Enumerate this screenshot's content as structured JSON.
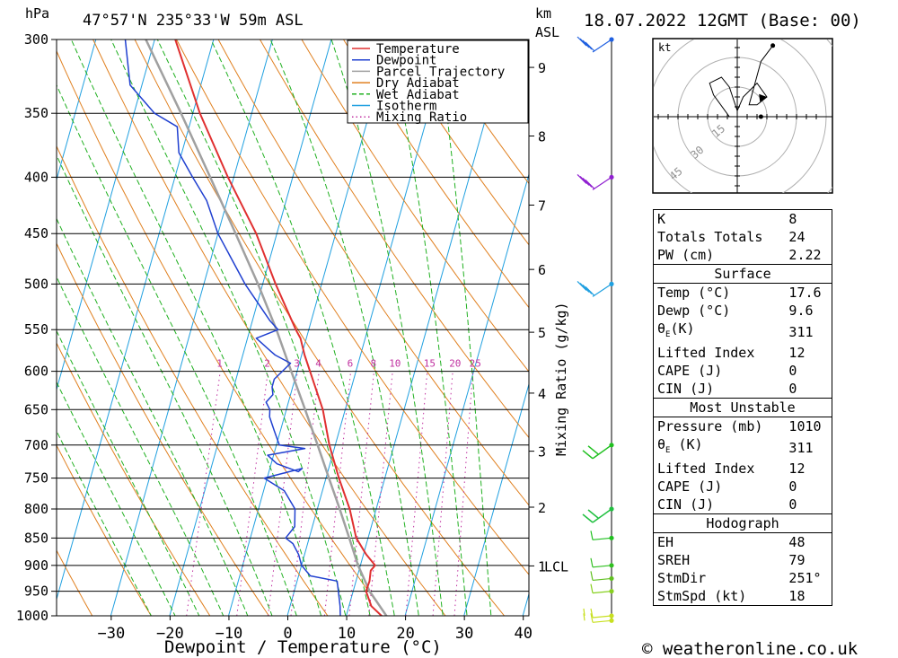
{
  "header": {
    "unit_hpa": "hPa",
    "location": "47°57'N  235°33'W  59m  ASL",
    "unit_km": "km",
    "unit_asl": "ASL",
    "datetime": "18.07.2022  12GMT  (Base: 00)"
  },
  "footer": {
    "credit": "© weatheronline.co.uk"
  },
  "hodograph": {
    "unit": "kt",
    "rings": [
      "15",
      "30",
      "45"
    ]
  },
  "legend": [
    {
      "label": "Temperature",
      "color": "#e03030",
      "style": "solid"
    },
    {
      "label": "Dewpoint",
      "color": "#2040d0",
      "style": "solid"
    },
    {
      "label": "Parcel Trajectory",
      "color": "#a0a0a0",
      "style": "solid"
    },
    {
      "label": "Dry Adiabat",
      "color": "#e08020",
      "style": "solid"
    },
    {
      "label": "Wet Adiabat",
      "color": "#20b020",
      "style": "dashed"
    },
    {
      "label": "Isotherm",
      "color": "#20a0e0",
      "style": "solid"
    },
    {
      "label": "Mixing Ratio",
      "color": "#c030a0",
      "style": "dotted"
    }
  ],
  "indices": [
    {
      "k": "K",
      "v": "8"
    },
    {
      "k": "Totals Totals",
      "v": "24"
    },
    {
      "k": "PW (cm)",
      "v": "2.22"
    }
  ],
  "surface": {
    "title": "Surface",
    "rows": [
      {
        "k": "Temp (°C)",
        "v": "17.6"
      },
      {
        "k": "Dewp (°C)",
        "v": "9.6"
      },
      {
        "k": "θE(K)",
        "v": "311"
      },
      {
        "k": "Lifted Index",
        "v": "12"
      },
      {
        "k": "CAPE (J)",
        "v": "0"
      },
      {
        "k": "CIN (J)",
        "v": "0"
      }
    ]
  },
  "most_unstable": {
    "title": "Most Unstable",
    "rows": [
      {
        "k": "Pressure (mb)",
        "v": "1010"
      },
      {
        "k": "θE (K)",
        "v": "311"
      },
      {
        "k": "Lifted Index",
        "v": "12"
      },
      {
        "k": "CAPE (J)",
        "v": "0"
      },
      {
        "k": "CIN (J)",
        "v": "0"
      }
    ]
  },
  "hodograph_table": {
    "title": "Hodograph",
    "rows": [
      {
        "k": "EH",
        "v": "48"
      },
      {
        "k": "SREH",
        "v": "79"
      },
      {
        "k": "StmDir",
        "v": "251°"
      },
      {
        "k": "StmSpd (kt)",
        "v": "18"
      }
    ]
  },
  "chart_data": {
    "type": "line",
    "subtype": "skew-T log-p",
    "xlabel": "Dewpoint / Temperature (°C)",
    "ylabel": "hPa",
    "right_axis_label": "Mixing Ratio (g/kg)",
    "x_ticks": [
      -30,
      -20,
      -10,
      0,
      10,
      20,
      30,
      40
    ],
    "pressure_levels": [
      300,
      350,
      400,
      450,
      500,
      550,
      600,
      650,
      700,
      750,
      800,
      850,
      900,
      950,
      1000
    ],
    "height_ticks_km": [
      {
        "label": "9",
        "p": 318
      },
      {
        "label": "8",
        "p": 367
      },
      {
        "label": "7",
        "p": 424
      },
      {
        "label": "6",
        "p": 485
      },
      {
        "label": "5",
        "p": 553
      },
      {
        "label": "4",
        "p": 628
      },
      {
        "label": "3",
        "p": 709
      },
      {
        "label": "2",
        "p": 797
      },
      {
        "label": "1",
        "p": 901
      }
    ],
    "lcl": {
      "label": "LCL",
      "p": 901
    },
    "mixing_ratio_labels": [
      "1",
      "2",
      "3",
      "4",
      "6",
      "8",
      "10",
      "15",
      "20",
      "25"
    ],
    "grid": true,
    "legend_position": "top-right",
    "series": [
      {
        "name": "Temperature",
        "points": [
          [
            1010,
            17.6
          ],
          [
            1000,
            16.0
          ],
          [
            980,
            13.8
          ],
          [
            950,
            12.2
          ],
          [
            930,
            12.3
          ],
          [
            910,
            12.0
          ],
          [
            900,
            12.5
          ],
          [
            880,
            10.5
          ],
          [
            850,
            8.0
          ],
          [
            800,
            5.5
          ],
          [
            750,
            2.2
          ],
          [
            700,
            -1.0
          ],
          [
            650,
            -3.8
          ],
          [
            600,
            -7.8
          ],
          [
            580,
            -9.5
          ],
          [
            560,
            -11.0
          ],
          [
            550,
            -12.2
          ],
          [
            500,
            -17.8
          ],
          [
            450,
            -23.5
          ],
          [
            400,
            -31.0
          ],
          [
            350,
            -38.8
          ],
          [
            300,
            -46.5
          ]
        ]
      },
      {
        "name": "Dewpoint",
        "points": [
          [
            1010,
            9.6
          ],
          [
            1000,
            9.0
          ],
          [
            980,
            8.5
          ],
          [
            950,
            7.5
          ],
          [
            930,
            6.8
          ],
          [
            920,
            2.0
          ],
          [
            900,
            0.0
          ],
          [
            880,
            -1.0
          ],
          [
            860,
            -2.5
          ],
          [
            850,
            -4.0
          ],
          [
            830,
            -3.0
          ],
          [
            800,
            -3.8
          ],
          [
            770,
            -6.5
          ],
          [
            750,
            -10.5
          ],
          [
            740,
            -6.5
          ],
          [
            735,
            -4.5
          ],
          [
            740,
            -5.0
          ],
          [
            728,
            -9.0
          ],
          [
            715,
            -11.0
          ],
          [
            705,
            -5.0
          ],
          [
            700,
            -9.5
          ],
          [
            680,
            -11.0
          ],
          [
            660,
            -12.5
          ],
          [
            650,
            -12.8
          ],
          [
            640,
            -13.8
          ],
          [
            630,
            -13.0
          ],
          [
            620,
            -13.5
          ],
          [
            610,
            -13.5
          ],
          [
            600,
            -12.5
          ],
          [
            590,
            -11.5
          ],
          [
            580,
            -14.5
          ],
          [
            575,
            -15.5
          ],
          [
            560,
            -18.5
          ],
          [
            550,
            -15.2
          ],
          [
            540,
            -17.0
          ],
          [
            500,
            -23.0
          ],
          [
            450,
            -30.0
          ],
          [
            420,
            -33.5
          ],
          [
            400,
            -37.0
          ],
          [
            380,
            -40.5
          ],
          [
            360,
            -42.0
          ],
          [
            350,
            -46.5
          ],
          [
            330,
            -52.0
          ],
          [
            300,
            -55.0
          ]
        ]
      },
      {
        "name": "Parcel Trajectory",
        "points": [
          [
            1010,
            17.6
          ],
          [
            950,
            12.8
          ],
          [
            900,
            9.6
          ],
          [
            850,
            6.8
          ],
          [
            800,
            3.8
          ],
          [
            750,
            0.5
          ],
          [
            700,
            -3.0
          ],
          [
            650,
            -6.8
          ],
          [
            600,
            -11.0
          ],
          [
            550,
            -15.5
          ],
          [
            500,
            -20.8
          ],
          [
            450,
            -27.0
          ],
          [
            400,
            -34.0
          ],
          [
            350,
            -42.0
          ],
          [
            300,
            -51.5
          ]
        ]
      }
    ],
    "wind_barbs": [
      {
        "p": 1010,
        "color": "#c8e020"
      },
      {
        "p": 1000,
        "color": "#c8e020"
      },
      {
        "p": 950,
        "color": "#88d020"
      },
      {
        "p": 925,
        "color": "#60c020"
      },
      {
        "p": 900,
        "color": "#30c020"
      },
      {
        "p": 850,
        "color": "#20c020"
      },
      {
        "p": 800,
        "color": "#20c040"
      },
      {
        "p": 700,
        "color": "#20c020"
      },
      {
        "p": 500,
        "color": "#20a0e0"
      },
      {
        "p": 400,
        "color": "#9020d0"
      },
      {
        "p": 300,
        "color": "#2060e0"
      }
    ],
    "hodograph_points": [
      [
        -4,
        0
      ],
      [
        -12,
        11
      ],
      [
        -14,
        17
      ],
      [
        -8,
        20
      ],
      [
        -4,
        15
      ],
      [
        0,
        3
      ],
      [
        3,
        10
      ],
      [
        10,
        17
      ],
      [
        15,
        10
      ],
      [
        10,
        6
      ],
      [
        6,
        6
      ],
      [
        12,
        28
      ],
      [
        18,
        36
      ]
    ],
    "hodograph_storm_motion": [
      12,
      0
    ]
  }
}
